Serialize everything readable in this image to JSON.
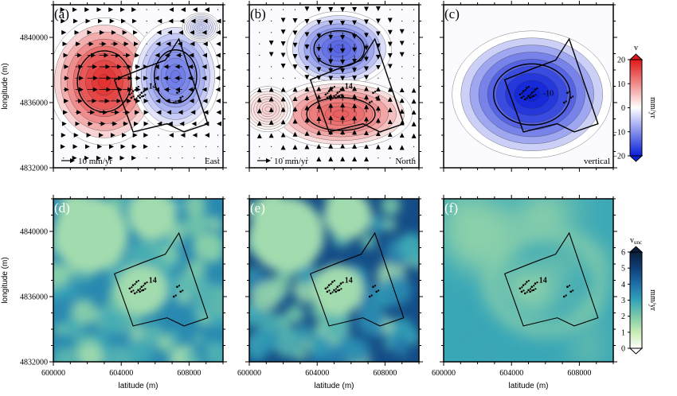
{
  "chart_data": {
    "type": "heatmap",
    "xlabel": "latitude (m)",
    "ylabel": "longitude (m)",
    "xticks": [
      600000,
      604000,
      608000
    ],
    "xtick_labels": [
      "600000",
      "604000",
      "608000"
    ],
    "yticks": [
      4832000,
      4836000,
      4840000
    ],
    "ytick_labels": [
      "4832000",
      "4836000",
      "4840000"
    ],
    "xlim": [
      600000,
      610000
    ],
    "ylim": [
      4832000,
      4842000
    ],
    "velocity_colorbar": {
      "label": "v",
      "unit": "mm/yr",
      "range": [
        -20,
        20
      ],
      "ticks": [
        -20,
        -10,
        0,
        10,
        20
      ],
      "tick_labels": [
        "−20",
        "−10",
        "0",
        "10",
        "20"
      ],
      "colors": [
        "#0a1fd8",
        "#ffffff",
        "#e01818"
      ]
    },
    "uncertainty_colorbar": {
      "label_main": "v",
      "label_sub": "unc",
      "unit": "mm/yr",
      "range": [
        0,
        6
      ],
      "ticks": [
        0,
        1,
        2,
        3,
        4,
        5,
        6
      ],
      "tick_labels": [
        "0",
        "1",
        "2",
        "3",
        "4",
        "5",
        "6"
      ],
      "colors": [
        "#ffffff",
        "#c8ecb4",
        "#7cc9a8",
        "#33a3b8",
        "#1f6ea8",
        "#0f3f78",
        "#0b1e3c"
      ]
    },
    "reference_arrow_label": "10 mm/yr",
    "panels": [
      {
        "label": "(a)",
        "component": "East",
        "kind": "velocity",
        "peak_positive": 18,
        "peak_negative": -12
      },
      {
        "label": "(b)",
        "component": "North",
        "kind": "velocity",
        "peak_positive": 14,
        "peak_negative": -14
      },
      {
        "label": "(c)",
        "component": "vertical",
        "kind": "velocity",
        "peak_negative": -20,
        "contour_label": "-10"
      },
      {
        "label": "(d)",
        "component": "",
        "kind": "uncertainty",
        "level_min": 1.5,
        "level_max": 3.8
      },
      {
        "label": "(e)",
        "component": "",
        "kind": "uncertainty",
        "level_min": 1.5,
        "level_max": 5.0
      },
      {
        "label": "(f)",
        "component": "",
        "kind": "uncertainty",
        "level_min": 1.8,
        "level_max": 3.2
      }
    ],
    "contour_annotations": [
      "-10",
      "14"
    ],
    "study_polygon": [
      [
        603600,
        4837400
      ],
      [
        604700,
        4834200
      ],
      [
        606700,
        4834700
      ],
      [
        607700,
        4834200
      ],
      [
        609100,
        4834700
      ],
      [
        607400,
        4839900
      ],
      [
        606600,
        4838600
      ],
      [
        605300,
        4838100
      ]
    ],
    "stations": [
      [
        604500,
        4836500
      ],
      [
        604700,
        4836700
      ],
      [
        605000,
        4836400
      ],
      [
        604800,
        4836200
      ],
      [
        605200,
        4836600
      ],
      [
        605400,
        4836800
      ],
      [
        604900,
        4836900
      ],
      [
        605100,
        4836300
      ],
      [
        604600,
        4836300
      ],
      [
        605300,
        4836400
      ],
      [
        607300,
        4836600
      ],
      [
        607500,
        4836300
      ],
      [
        607100,
        4836000
      ]
    ]
  }
}
